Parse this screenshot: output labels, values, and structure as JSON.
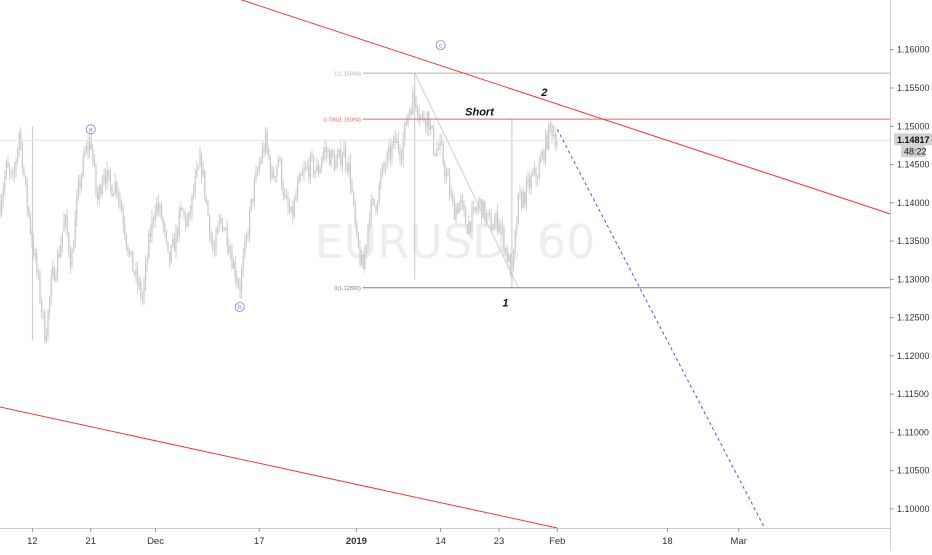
{
  "chart_data": {
    "type": "candlestick",
    "watermark": "EURUSD, 60",
    "y_axis": {
      "position": "right",
      "range": [
        1.0975,
        1.1665
      ],
      "ticks": [
        "1.16000",
        "1.15500",
        "1.15000",
        "1.14500",
        "1.14000",
        "1.13500",
        "1.13000",
        "1.12500",
        "1.12000",
        "1.11500",
        "1.11000",
        "1.10500",
        "1.10000"
      ],
      "tick_values": [
        1.16,
        1.155,
        1.15,
        1.145,
        1.14,
        1.135,
        1.13,
        1.125,
        1.12,
        1.115,
        1.11,
        1.105,
        1.1
      ]
    },
    "x_axis": {
      "ticks": [
        {
          "label": "12",
          "date": "2018-11-12",
          "bold": false
        },
        {
          "label": "21",
          "date": "2018-11-21",
          "bold": false
        },
        {
          "label": "Dec",
          "date": "2018-12-01",
          "bold": false
        },
        {
          "label": "17",
          "date": "2018-12-17",
          "bold": false
        },
        {
          "label": "2019",
          "date": "2019-01-01",
          "bold": true
        },
        {
          "label": "14",
          "date": "2019-01-14",
          "bold": false
        },
        {
          "label": "23",
          "date": "2019-01-23",
          "bold": false
        },
        {
          "label": "Feb",
          "date": "2019-02-01",
          "bold": false
        },
        {
          "label": "18",
          "date": "2019-02-18",
          "bold": false
        },
        {
          "label": "Mar",
          "date": "2019-03-01",
          "bold": false
        }
      ]
    },
    "last_price": {
      "price": "1.14817",
      "value": 1.14817,
      "countdown": "48:22"
    },
    "price_path": [
      [
        "2018-11-07",
        1.14
      ],
      [
        "2018-11-08",
        1.1445
      ],
      [
        "2018-11-09",
        1.1425
      ],
      [
        "2018-11-10",
        1.1495
      ],
      [
        "2018-11-11",
        1.141
      ],
      [
        "2018-11-12",
        1.135
      ],
      [
        "2018-11-13",
        1.129
      ],
      [
        "2018-11-14",
        1.1225
      ],
      [
        "2018-11-15",
        1.13
      ],
      [
        "2018-11-16",
        1.133
      ],
      [
        "2018-11-17",
        1.138
      ],
      [
        "2018-11-18",
        1.132
      ],
      [
        "2018-11-19",
        1.141
      ],
      [
        "2018-11-20",
        1.146
      ],
      [
        "2018-11-21",
        1.1485
      ],
      [
        "2018-11-22",
        1.14
      ],
      [
        "2018-11-23",
        1.1445
      ],
      [
        "2018-11-24",
        1.142
      ],
      [
        "2018-11-25",
        1.1425
      ],
      [
        "2018-11-26",
        1.138
      ],
      [
        "2018-11-27",
        1.133
      ],
      [
        "2018-11-28",
        1.13
      ],
      [
        "2018-11-29",
        1.1275
      ],
      [
        "2018-11-30",
        1.135
      ],
      [
        "2018-12-01",
        1.14
      ],
      [
        "2018-12-02",
        1.138
      ],
      [
        "2018-12-03",
        1.132
      ],
      [
        "2018-12-04",
        1.135
      ],
      [
        "2018-12-05",
        1.139
      ],
      [
        "2018-12-06",
        1.137
      ],
      [
        "2018-12-07",
        1.142
      ],
      [
        "2018-12-08",
        1.1455
      ],
      [
        "2018-12-09",
        1.139
      ],
      [
        "2018-12-10",
        1.133
      ],
      [
        "2018-12-11",
        1.138
      ],
      [
        "2018-12-12",
        1.136
      ],
      [
        "2018-12-13",
        1.132
      ],
      [
        "2018-12-14",
        1.129
      ],
      [
        "2018-12-15",
        1.135
      ],
      [
        "2018-12-16",
        1.141
      ],
      [
        "2018-12-17",
        1.145
      ],
      [
        "2018-12-18",
        1.148
      ],
      [
        "2018-12-19",
        1.143
      ],
      [
        "2018-12-20",
        1.146
      ],
      [
        "2018-12-21",
        1.14
      ],
      [
        "2018-12-22",
        1.138
      ],
      [
        "2018-12-23",
        1.142
      ],
      [
        "2018-12-24",
        1.144
      ],
      [
        "2018-12-25",
        1.145
      ],
      [
        "2018-12-26",
        1.144
      ],
      [
        "2018-12-27",
        1.147
      ],
      [
        "2018-12-28",
        1.146
      ],
      [
        "2018-12-29",
        1.145
      ],
      [
        "2018-12-30",
        1.147
      ],
      [
        "2018-12-31",
        1.144
      ],
      [
        "2019-01-01",
        1.135
      ],
      [
        "2019-01-02",
        1.131
      ],
      [
        "2019-01-03",
        1.139
      ],
      [
        "2019-01-04",
        1.14
      ],
      [
        "2019-01-05",
        1.144
      ],
      [
        "2019-01-06",
        1.146
      ],
      [
        "2019-01-07",
        1.148
      ],
      [
        "2019-01-08",
        1.147
      ],
      [
        "2019-01-09",
        1.152
      ],
      [
        "2019-01-10",
        1.154
      ],
      [
        "2019-01-11",
        1.151
      ],
      [
        "2019-01-12",
        1.1515
      ],
      [
        "2019-01-13",
        1.147
      ],
      [
        "2019-01-14",
        1.147
      ],
      [
        "2019-01-15",
        1.143
      ],
      [
        "2019-01-16",
        1.139
      ],
      [
        "2019-01-17",
        1.14
      ],
      [
        "2019-01-18",
        1.137
      ],
      [
        "2019-01-19",
        1.138
      ],
      [
        "2019-01-20",
        1.14
      ],
      [
        "2019-01-21",
        1.138
      ],
      [
        "2019-01-22",
        1.137
      ],
      [
        "2019-01-23",
        1.138
      ],
      [
        "2019-01-24",
        1.134
      ],
      [
        "2019-01-25",
        1.1305
      ],
      [
        "2019-01-26",
        1.14
      ],
      [
        "2019-01-27",
        1.141
      ],
      [
        "2019-01-28",
        1.143
      ],
      [
        "2019-01-29",
        1.144
      ],
      [
        "2019-01-30",
        1.147
      ],
      [
        "2019-01-31",
        1.15
      ],
      [
        "2019-02-01",
        1.1482
      ]
    ],
    "extremes": [
      {
        "date": "2018-11-12",
        "low": 1.122,
        "high": 1.15
      },
      {
        "date": "2019-01-10",
        "low": 1.13,
        "high": 1.1569
      },
      {
        "date": "2019-01-25",
        "low": 1.1289,
        "high": 1.151
      }
    ],
    "fib_retracement": {
      "levels": [
        {
          "label": "1(1.15694)",
          "value": 1.15694,
          "color": "#b0b0b0"
        },
        {
          "label": "0.786(1.15094)",
          "value": 1.15094,
          "color": "#f06060"
        },
        {
          "label": "0(1.12890)",
          "value": 1.1289,
          "color": "#808080"
        }
      ],
      "start_date": "2019-01-02",
      "diagonal": {
        "from": [
          "2019-01-10",
          1.15694
        ],
        "to": [
          "2019-01-26",
          1.1289
        ]
      }
    },
    "trendlines": [
      {
        "name": "upper-channel",
        "color": "#f03a3a",
        "points": [
          [
            "2018-11-25",
            1.1719
          ],
          [
            "2019-03-31",
            1.1367
          ]
        ]
      },
      {
        "name": "lower-channel",
        "color": "#f03a3a",
        "points": [
          [
            "2018-11-06",
            1.1135
          ],
          [
            "2019-02-01",
            1.0975
          ]
        ]
      }
    ],
    "projection": {
      "color": "#5050e0",
      "points": [
        [
          "2019-02-01",
          1.1496
        ],
        [
          "2019-03-05",
          1.0975
        ]
      ]
    },
    "wave_labels": [
      {
        "text": "a",
        "style": "circle",
        "date": "2018-11-21",
        "price": 1.1496
      },
      {
        "text": "b",
        "style": "circle",
        "date": "2018-12-14",
        "price": 1.1264
      },
      {
        "text": "c",
        "style": "circle",
        "date": "2019-01-14",
        "price": 1.1606
      },
      {
        "text": "1",
        "style": "bold",
        "date": "2019-01-24",
        "price": 1.127
      },
      {
        "text": "2",
        "style": "bold",
        "date": "2019-01-30",
        "price": 1.1545
      },
      {
        "text": "Short",
        "style": "bold",
        "date": "2019-01-20",
        "price": 1.1519
      }
    ],
    "colors": {
      "candle": "#c8c8c8",
      "axis_text": "#333333",
      "channel": "#f03a3a",
      "projection": "#5050e0",
      "wave_circle": "#8c7ad8",
      "watermark": "#eeeeee"
    }
  }
}
